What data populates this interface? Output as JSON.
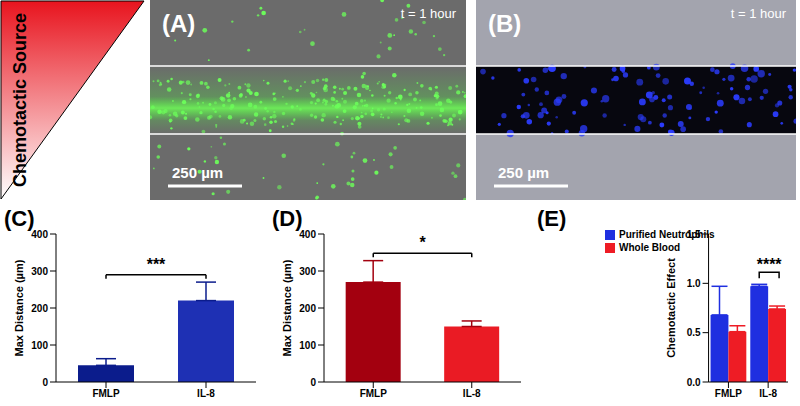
{
  "figure": {
    "side_label": "Chemotactic Source"
  },
  "images": [
    {
      "panel": "(A)",
      "time": "t = 1 hour",
      "scale_bar": "250 µm",
      "mode": "green"
    },
    {
      "panel": "(B)",
      "time": "t = 1 hour",
      "scale_bar": "250 µm",
      "mode": "blue"
    }
  ],
  "chart_data": [
    {
      "panel": "(C)",
      "type": "bar",
      "categories": [
        "FMLP",
        "IL-8"
      ],
      "values": [
        45,
        220
      ],
      "errors": [
        18,
        50
      ],
      "colors": [
        "#0b1c8c",
        "#1e30b4"
      ],
      "y_label": "Max Distance (µm)",
      "ylim": [
        0,
        400
      ],
      "yticks": [
        0,
        100,
        200,
        300,
        400
      ],
      "annotations": [
        {
          "text": "***",
          "between": [
            "FMLP",
            "IL-8"
          ]
        }
      ]
    },
    {
      "panel": "(D)",
      "type": "bar",
      "categories": [
        "FMLP",
        "IL-8"
      ],
      "values": [
        270,
        150
      ],
      "errors": [
        58,
        15
      ],
      "colors": [
        "#a3000f",
        "#ea1b24"
      ],
      "y_label": "Max Distance (µm)",
      "ylim": [
        0,
        400
      ],
      "yticks": [
        0,
        100,
        200,
        300,
        400
      ],
      "annotations": [
        {
          "text": "*",
          "between": [
            "FMLP",
            "IL-8"
          ]
        }
      ]
    },
    {
      "panel": "(E)",
      "type": "grouped_bar",
      "categories": [
        "FMLP",
        "IL-8"
      ],
      "series": [
        {
          "name": "Purified Neutrophils",
          "color": "#1f2fe0",
          "values": [
            0.68,
            0.97
          ],
          "errors": [
            0.29,
            0.02
          ]
        },
        {
          "name": "Whole Blood",
          "color": "#ee1c25",
          "values": [
            0.51,
            0.74
          ],
          "errors": [
            0.06,
            0.03
          ]
        }
      ],
      "y_label": "Chemotactic Effect",
      "ylim": [
        0,
        1.5
      ],
      "yticks": [
        {
          "value": 0,
          "label": "0.0"
        },
        {
          "value": 0.5,
          "label": "0.5"
        },
        {
          "value": 1,
          "label": "1.0"
        },
        {
          "value": 1.5,
          "label": "1.5"
        }
      ],
      "legend": "upper left",
      "annotations": [
        {
          "text": "****",
          "between": [
            "Purified Neutrophils",
            "Whole Blood"
          ],
          "category": "IL-8"
        }
      ]
    }
  ]
}
